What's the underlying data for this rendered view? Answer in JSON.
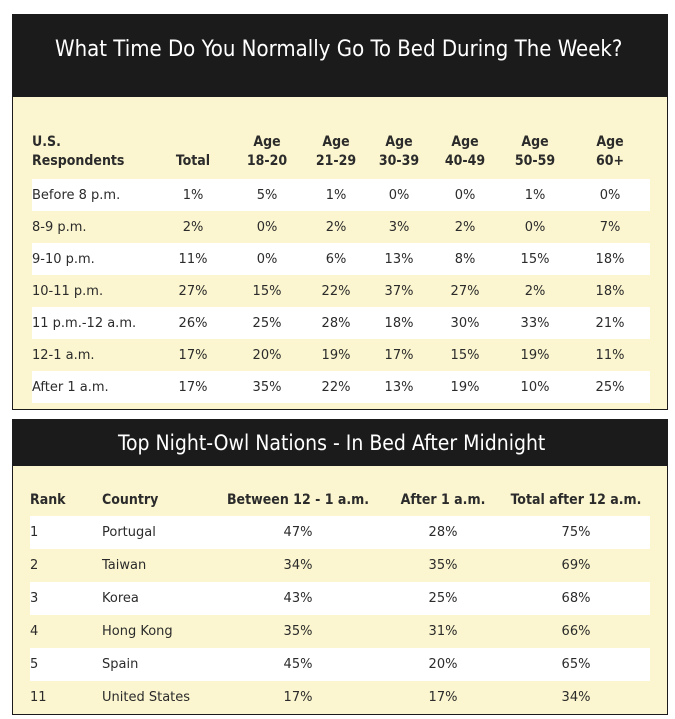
{
  "chart_data": [
    {
      "type": "table",
      "title": "What Time Do You Normally Go To Bed During The Week?",
      "columns": [
        {
          "line1": "U.S.",
          "line2": "Respondents"
        },
        {
          "line1": "",
          "line2": "Total"
        },
        {
          "line1": "Age",
          "line2": "18-20"
        },
        {
          "line1": "Age",
          "line2": "21-29"
        },
        {
          "line1": "Age",
          "line2": "30-39"
        },
        {
          "line1": "Age",
          "line2": "40-49"
        },
        {
          "line1": "Age",
          "line2": "50-59"
        },
        {
          "line1": "Age",
          "line2": "60+"
        }
      ],
      "rows": [
        [
          "Before 8 p.m.",
          "1%",
          "5%",
          "1%",
          "0%",
          "0%",
          "1%",
          "0%"
        ],
        [
          "8-9 p.m.",
          "2%",
          "0%",
          "2%",
          "3%",
          "2%",
          "0%",
          "7%"
        ],
        [
          "9-10 p.m.",
          "11%",
          "0%",
          "6%",
          "13%",
          "8%",
          "15%",
          "18%"
        ],
        [
          "10-11 p.m.",
          "27%",
          "15%",
          "22%",
          "37%",
          "27%",
          "2%",
          "18%"
        ],
        [
          "11 p.m.-12 a.m.",
          "26%",
          "25%",
          "28%",
          "18%",
          "30%",
          "33%",
          "21%"
        ],
        [
          "12-1 a.m.",
          "17%",
          "20%",
          "19%",
          "17%",
          "15%",
          "19%",
          "11%"
        ],
        [
          "After 1 a.m.",
          "17%",
          "35%",
          "22%",
          "13%",
          "19%",
          "10%",
          "25%"
        ]
      ]
    },
    {
      "type": "table",
      "title": "Top Night-Owl Nations - In Bed After Midnight",
      "columns": [
        "Rank",
        "Country",
        "Between 12 - 1 a.m.",
        "After 1 a.m.",
        "Total after 12 a.m."
      ],
      "rows": [
        [
          "1",
          "Portugal",
          "47%",
          "28%",
          "75%"
        ],
        [
          "2",
          "Taiwan",
          "34%",
          "35%",
          "69%"
        ],
        [
          "3",
          "Korea",
          "43%",
          "25%",
          "68%"
        ],
        [
          "4",
          "Hong Kong",
          "35%",
          "31%",
          "66%"
        ],
        [
          "5",
          "Spain",
          "45%",
          "20%",
          "65%"
        ],
        [
          "11",
          "United States",
          "17%",
          "17%",
          "34%"
        ]
      ]
    }
  ],
  "colors": {
    "header_background": "#1b1b1b",
    "panel_background": "#fbf6cf",
    "row_stripe": "#ffffff",
    "title_text": "#ffffff",
    "body_text": "#2b2b2b"
  }
}
